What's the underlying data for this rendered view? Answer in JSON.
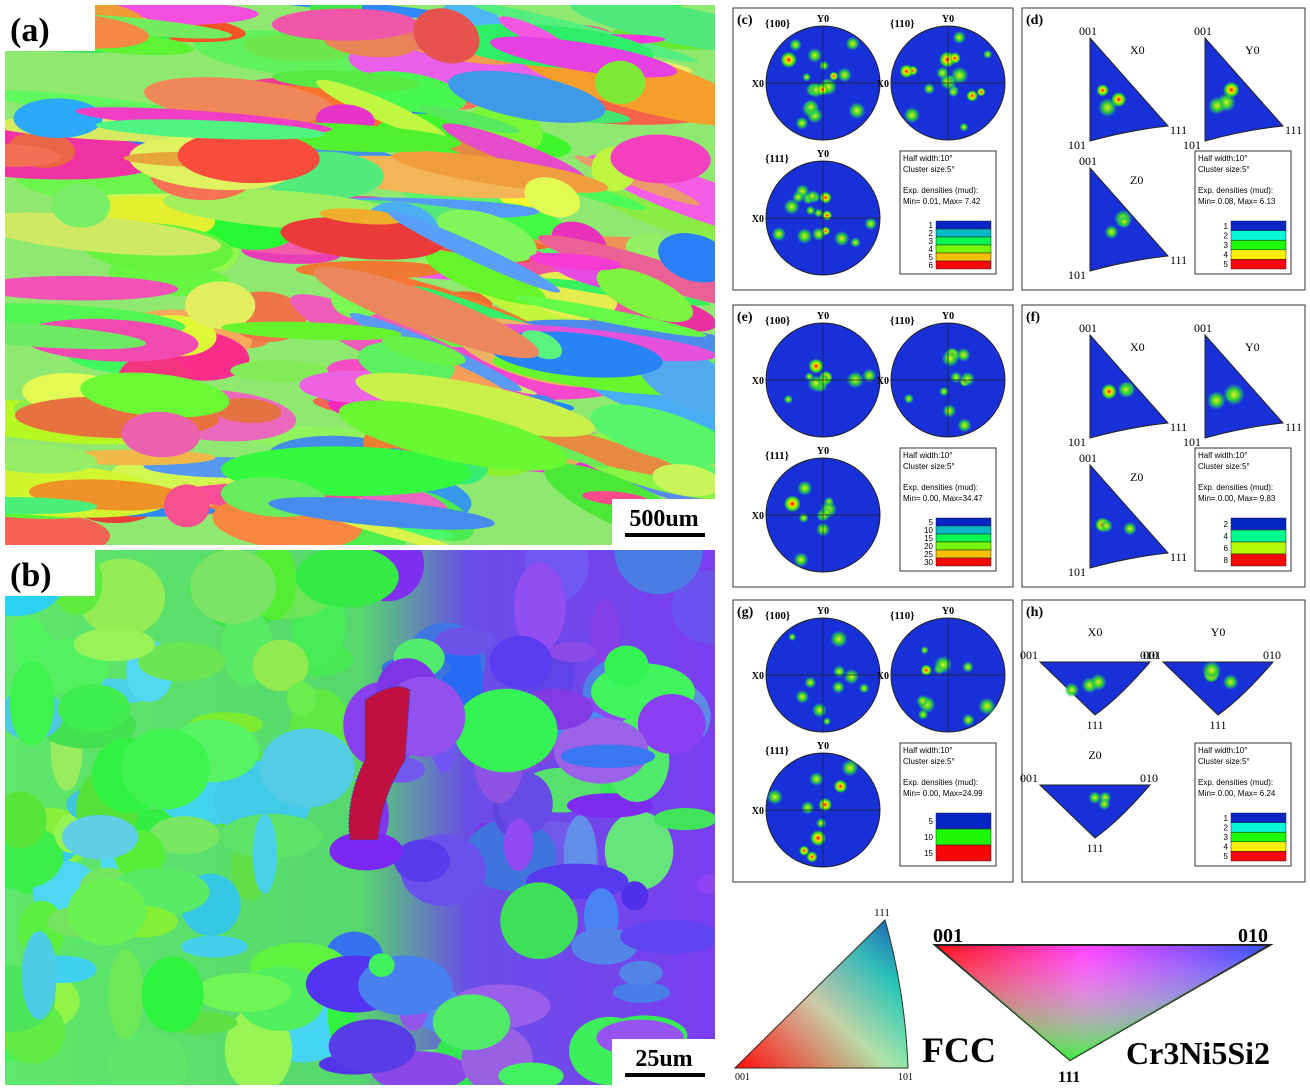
{
  "maps": [
    {
      "label": "(a)",
      "scale_bar": "500um"
    },
    {
      "label": "(b)",
      "scale_bar": "25um"
    }
  ],
  "pole_figures": [
    {
      "label": "(c)",
      "figures": [
        {
          "plane": "{100}",
          "top": "Y0",
          "left": "X0"
        },
        {
          "plane": "{110}",
          "top": "Y0",
          "left": "X0"
        },
        {
          "plane": "{111}",
          "top": "Y0",
          "left": "X0"
        }
      ],
      "legend": {
        "lines": [
          "Half width:10°",
          "Cluster size:5°",
          "Exp. densities (mud):",
          "Min= 0.01, Max= 7.42"
        ],
        "levels": [
          "1",
          "2",
          "3",
          "4",
          "5",
          "6"
        ]
      }
    },
    {
      "label": "(e)",
      "figures": [
        {
          "plane": "{100}",
          "top": "Y0",
          "left": "X0"
        },
        {
          "plane": "{110}",
          "top": "Y0",
          "left": "X0"
        },
        {
          "plane": "{111}",
          "top": "Y0",
          "left": "X0"
        }
      ],
      "legend": {
        "lines": [
          "Half width:10°",
          "Cluster size:5°",
          "Exp. densities (mud):",
          "Min= 0.00, Max=34.47"
        ],
        "levels": [
          "5",
          "10",
          "15",
          "20",
          "25",
          "30"
        ]
      }
    },
    {
      "label": "(g)",
      "figures": [
        {
          "plane": "{100}",
          "top": "Y0",
          "left": "X0"
        },
        {
          "plane": "{110}",
          "top": "Y0",
          "left": "X0"
        },
        {
          "plane": "{111}",
          "top": "Y0",
          "left": "X0"
        }
      ],
      "legend": {
        "lines": [
          "Half width:10°",
          "Cluster size:5°",
          "Exp. densities (mud):",
          "Min= 0.00, Max=24.99"
        ],
        "levels": [
          "5",
          "10",
          "15"
        ]
      }
    }
  ],
  "inverse_pole_figures": [
    {
      "label": "(d)",
      "figures": [
        {
          "title": "X0",
          "corners": [
            "001",
            "101",
            "111"
          ]
        },
        {
          "title": "Y0",
          "corners": [
            "001",
            "101",
            "111"
          ]
        },
        {
          "title": "Z0",
          "corners": [
            "001",
            "101",
            "111"
          ]
        }
      ],
      "legend": {
        "lines": [
          "Half width:10°",
          "Cluster size:5°",
          "Exp. densities (mud):",
          "Min= 0.08, Max= 6.13"
        ],
        "levels": [
          "1",
          "2",
          "3",
          "4",
          "5"
        ]
      }
    },
    {
      "label": "(f)",
      "figures": [
        {
          "title": "X0",
          "corners": [
            "001",
            "101",
            "111"
          ]
        },
        {
          "title": "Y0",
          "corners": [
            "001",
            "101",
            "111"
          ]
        },
        {
          "title": "Z0",
          "corners": [
            "001",
            "101",
            "111"
          ]
        }
      ],
      "legend": {
        "lines": [
          "Half width:10°",
          "Cluster size:5°",
          "Exp. densities (mud):",
          "Min= 0.00, Max= 9.83"
        ],
        "levels": [
          "2",
          "4",
          "6",
          "8"
        ]
      }
    },
    {
      "label": "(h)",
      "figures": [
        {
          "title": "X0",
          "corners": [
            "001",
            "010",
            "111"
          ]
        },
        {
          "title": "Y0",
          "corners": [
            "001",
            "010",
            "111"
          ]
        },
        {
          "title": "Z0",
          "corners": [
            "001",
            "010",
            "111"
          ]
        }
      ],
      "legend": {
        "lines": [
          "Half width:10°",
          "Cluster size:5°",
          "Exp. densities (mud):",
          "Min= 0.00, Max= 6.24"
        ],
        "levels": [
          "1",
          "2",
          "3",
          "4",
          "5"
        ]
      }
    }
  ],
  "color_keys": [
    {
      "name": "FCC",
      "corners": [
        "111",
        "001",
        "101"
      ]
    },
    {
      "name": "Cr3Ni5Si2",
      "corners": [
        "001",
        "010",
        "111"
      ]
    }
  ]
}
